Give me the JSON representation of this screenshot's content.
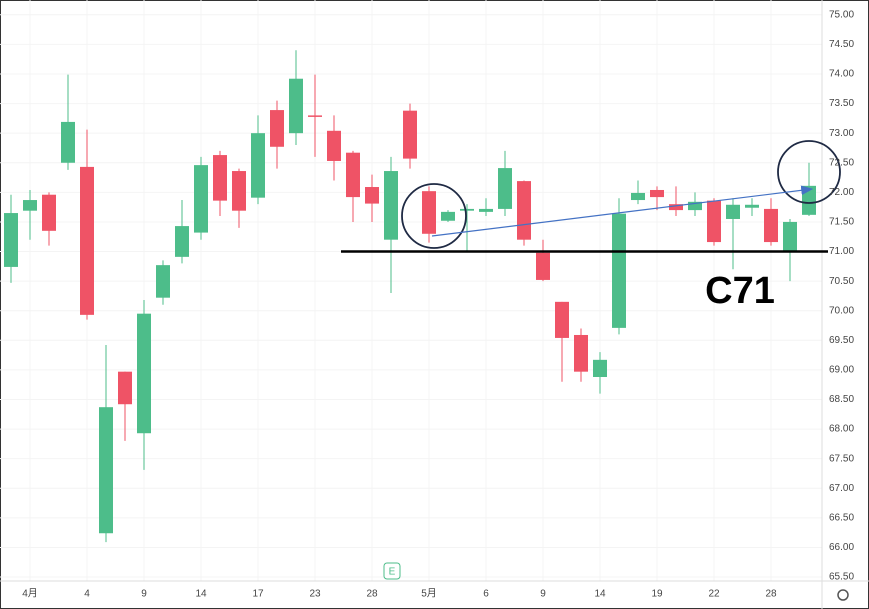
{
  "chart_data": {
    "type": "candlestick",
    "annotation": "C71",
    "marker_label": "E",
    "categories": [
      null,
      "4月",
      null,
      null,
      "4",
      null,
      null,
      "9",
      null,
      null,
      "14",
      null,
      null,
      "17",
      null,
      null,
      "23",
      null,
      null,
      "28",
      null,
      null,
      "5月",
      null,
      null,
      "6",
      null,
      null,
      "9",
      null,
      null,
      "14",
      null,
      null,
      "19",
      null,
      null,
      "22",
      null,
      null,
      "28",
      null,
      null
    ],
    "open": [
      70.74,
      71.69,
      71.96,
      72.5,
      72.43,
      66.24,
      68.97,
      67.93,
      70.22,
      70.91,
      71.32,
      72.63,
      72.36,
      71.91,
      73.39,
      73.0,
      73.3,
      73.04,
      72.67,
      72.09,
      71.2,
      73.38,
      72.02,
      71.52,
      71.69,
      71.67,
      71.72,
      72.19,
      70.98,
      70.15,
      69.59,
      68.88,
      69.71,
      71.87,
      72.04,
      71.8,
      71.7,
      71.86,
      71.55,
      71.74,
      71.72,
      71.0,
      71.62
    ],
    "high": [
      71.96,
      72.04,
      72.0,
      73.99,
      73.06,
      69.42,
      68.97,
      70.18,
      70.85,
      71.87,
      72.6,
      72.7,
      72.4,
      73.3,
      73.55,
      74.4,
      73.99,
      73.3,
      72.7,
      72.3,
      72.6,
      73.5,
      72.1,
      71.7,
      71.8,
      71.9,
      72.7,
      72.2,
      71.2,
      70.15,
      69.7,
      69.3,
      71.9,
      72.2,
      72.1,
      72.1,
      72.0,
      71.9,
      71.9,
      71.9,
      71.9,
      71.55,
      72.5
    ],
    "low": [
      70.47,
      71.2,
      71.1,
      72.38,
      69.85,
      66.09,
      67.8,
      67.31,
      70.1,
      70.8,
      71.2,
      71.6,
      71.4,
      71.8,
      72.4,
      72.8,
      72.6,
      72.2,
      71.5,
      71.5,
      70.3,
      72.4,
      71.15,
      71.5,
      71.0,
      71.6,
      71.6,
      71.1,
      70.5,
      68.8,
      68.8,
      68.6,
      69.6,
      71.8,
      71.7,
      71.6,
      71.6,
      71.1,
      70.7,
      71.6,
      71.1,
      70.5,
      71.6
    ],
    "close": [
      71.65,
      71.87,
      71.35,
      73.19,
      69.93,
      68.37,
      68.42,
      69.95,
      70.77,
      71.43,
      72.46,
      71.86,
      71.69,
      73.0,
      72.77,
      73.92,
      73.28,
      72.53,
      71.92,
      71.81,
      72.36,
      72.57,
      71.3,
      71.67,
      71.72,
      71.72,
      72.41,
      71.2,
      70.52,
      69.54,
      68.97,
      69.17,
      71.64,
      71.99,
      71.92,
      71.7,
      71.84,
      71.16,
      71.79,
      71.79,
      71.16,
      71.5,
      72.11
    ],
    "up_color": "#4dbd8a",
    "down_color": "#ef5366",
    "ylim": [
      65.45,
      75.25
    ],
    "yticks": [
      {
        "value": 65.5,
        "label": "65.50"
      },
      {
        "value": 66,
        "label": "66.00"
      },
      {
        "value": 66.5,
        "label": "66.50"
      },
      {
        "value": 67,
        "label": "67.00"
      },
      {
        "value": 67.5,
        "label": "67.50"
      },
      {
        "value": 68,
        "label": "68.00"
      },
      {
        "value": 68.5,
        "label": "68.50"
      },
      {
        "value": 69,
        "label": "69.00"
      },
      {
        "value": 69.5,
        "label": "69.50"
      },
      {
        "value": 70,
        "label": "70.00"
      },
      {
        "value": 70.5,
        "label": "70.50"
      },
      {
        "value": 71,
        "label": "71.00"
      },
      {
        "value": 71.5,
        "label": "71.50"
      },
      {
        "value": 72,
        "label": "72.00"
      },
      {
        "value": 72.5,
        "label": "72.50"
      },
      {
        "value": 73,
        "label": "73.00"
      },
      {
        "value": 73.5,
        "label": "73.50"
      },
      {
        "value": 74,
        "label": "74.00"
      },
      {
        "value": 74.5,
        "label": "74.50"
      },
      {
        "value": 75,
        "label": "75.00"
      }
    ],
    "support_level": 71,
    "grid": true
  }
}
